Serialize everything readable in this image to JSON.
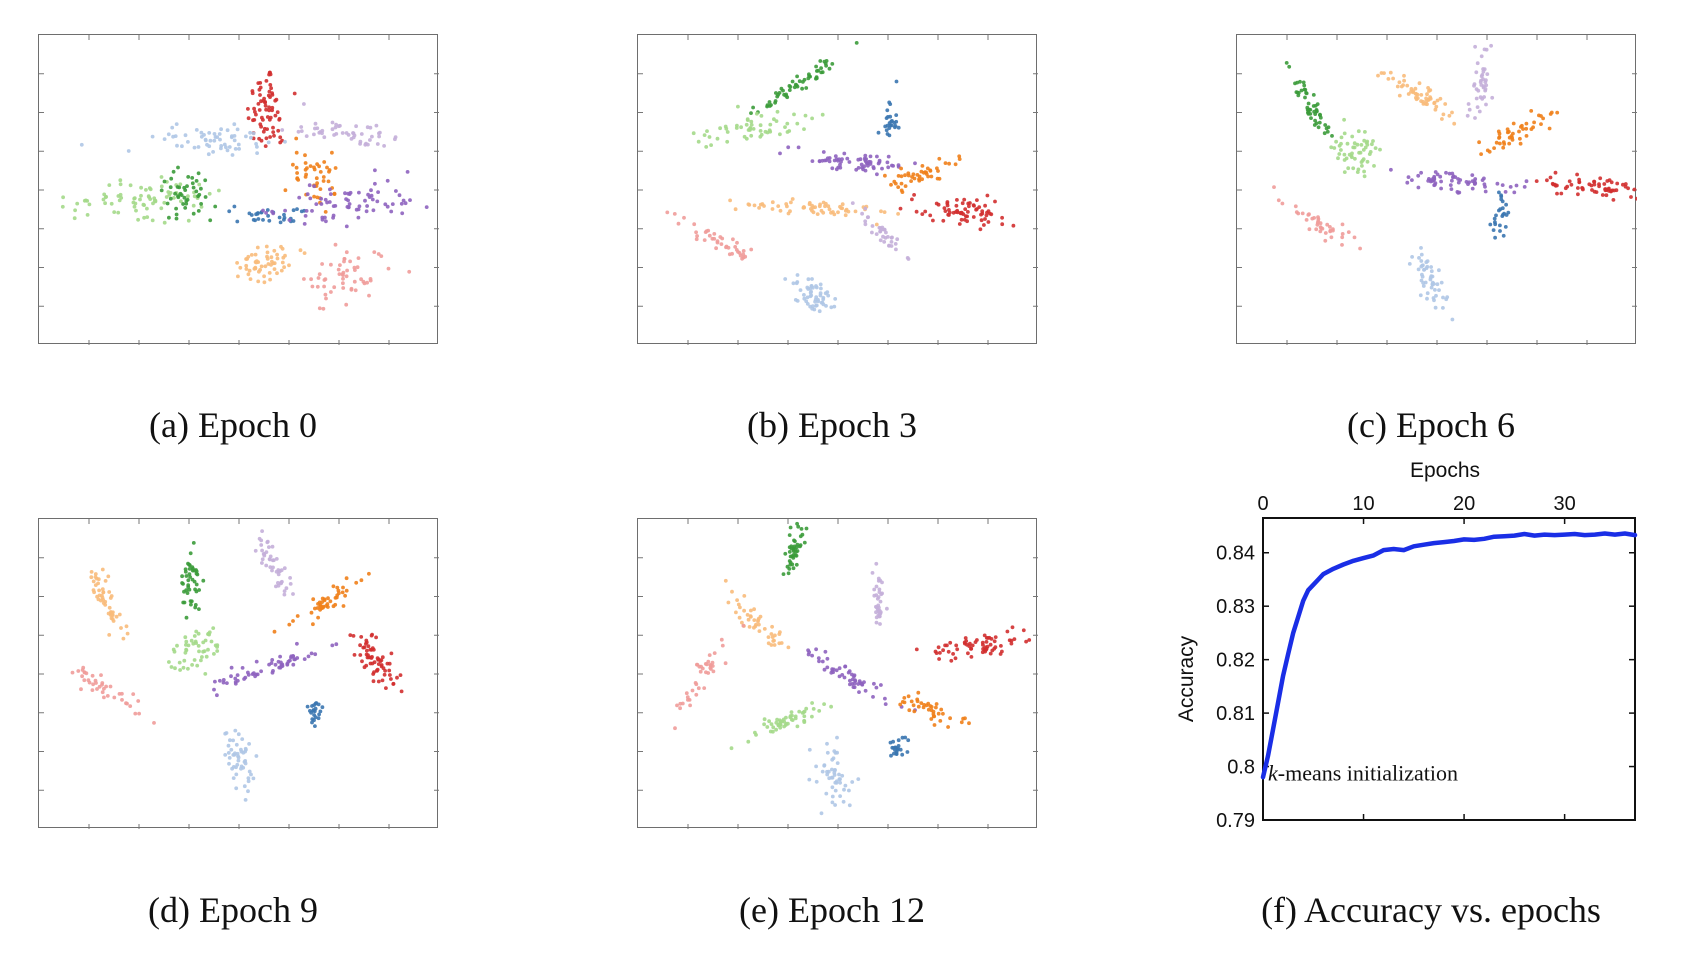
{
  "palette": {
    "blue": "#3a76b0",
    "lightblue": "#afc6e6",
    "orange": "#f07f19",
    "lightorange": "#f8bb7b",
    "green": "#3b9b3a",
    "lightgreen": "#a4d98a",
    "red": "#d12f2f",
    "pink": "#f09c9a",
    "purple": "#8e63bf",
    "lavender": "#c4afd9"
  },
  "captions": {
    "a": "(a) Epoch 0",
    "b": "(b) Epoch 3",
    "c": "(c) Epoch 6",
    "d": "(d) Epoch 9",
    "e": "(e) Epoch 12",
    "f": "(f) Accuracy vs. epochs"
  },
  "chart_data": [
    {
      "type": "scatter",
      "panel": "a",
      "clusters": [
        {
          "color": "red",
          "cx": 0.57,
          "cy": 0.24,
          "sx": 0.025,
          "sy": 0.07,
          "angle": 0,
          "n": 70
        },
        {
          "color": "lightblue",
          "cx": 0.43,
          "cy": 0.34,
          "sx": 0.08,
          "sy": 0.03,
          "angle": 0,
          "n": 60
        },
        {
          "color": "lavender",
          "cx": 0.78,
          "cy": 0.32,
          "sx": 0.08,
          "sy": 0.02,
          "angle": 5,
          "n": 50
        },
        {
          "color": "orange",
          "cx": 0.69,
          "cy": 0.45,
          "sx": 0.03,
          "sy": 0.05,
          "angle": 0,
          "n": 45
        },
        {
          "color": "lightgreen",
          "cx": 0.26,
          "cy": 0.53,
          "sx": 0.08,
          "sy": 0.035,
          "angle": -5,
          "n": 80
        },
        {
          "color": "green",
          "cx": 0.37,
          "cy": 0.52,
          "sx": 0.03,
          "sy": 0.04,
          "angle": 0,
          "n": 45
        },
        {
          "color": "blue",
          "cx": 0.57,
          "cy": 0.58,
          "sx": 0.05,
          "sy": 0.015,
          "angle": 0,
          "n": 30
        },
        {
          "color": "purple",
          "cx": 0.77,
          "cy": 0.54,
          "sx": 0.09,
          "sy": 0.03,
          "angle": -10,
          "n": 75
        },
        {
          "color": "lightorange",
          "cx": 0.57,
          "cy": 0.73,
          "sx": 0.05,
          "sy": 0.03,
          "angle": -15,
          "n": 55
        },
        {
          "color": "pink",
          "cx": 0.77,
          "cy": 0.78,
          "sx": 0.05,
          "sy": 0.04,
          "angle": -20,
          "n": 55
        }
      ]
    },
    {
      "type": "scatter",
      "panel": "b",
      "clusters": [
        {
          "color": "green",
          "cx": 0.4,
          "cy": 0.16,
          "sx": 0.06,
          "sy": 0.012,
          "angle": -35,
          "n": 55
        },
        {
          "color": "lightgreen",
          "cx": 0.29,
          "cy": 0.3,
          "sx": 0.06,
          "sy": 0.02,
          "angle": -10,
          "n": 55
        },
        {
          "color": "blue",
          "cx": 0.63,
          "cy": 0.27,
          "sx": 0.012,
          "sy": 0.04,
          "angle": 0,
          "n": 25
        },
        {
          "color": "purple",
          "cx": 0.54,
          "cy": 0.41,
          "sx": 0.08,
          "sy": 0.015,
          "angle": 5,
          "n": 65
        },
        {
          "color": "orange",
          "cx": 0.7,
          "cy": 0.45,
          "sx": 0.05,
          "sy": 0.015,
          "angle": -20,
          "n": 45
        },
        {
          "color": "red",
          "cx": 0.81,
          "cy": 0.57,
          "sx": 0.06,
          "sy": 0.025,
          "angle": 10,
          "n": 70
        },
        {
          "color": "lightorange",
          "cx": 0.45,
          "cy": 0.56,
          "sx": 0.09,
          "sy": 0.012,
          "angle": 3,
          "n": 60
        },
        {
          "color": "lavender",
          "cx": 0.61,
          "cy": 0.64,
          "sx": 0.04,
          "sy": 0.012,
          "angle": 45,
          "n": 35
        },
        {
          "color": "pink",
          "cx": 0.21,
          "cy": 0.67,
          "sx": 0.05,
          "sy": 0.015,
          "angle": 30,
          "n": 40
        },
        {
          "color": "lightblue",
          "cx": 0.44,
          "cy": 0.84,
          "sx": 0.04,
          "sy": 0.025,
          "angle": 45,
          "n": 55
        }
      ]
    },
    {
      "type": "scatter",
      "panel": "c",
      "clusters": [
        {
          "color": "green",
          "cx": 0.19,
          "cy": 0.24,
          "sx": 0.05,
          "sy": 0.012,
          "angle": 60,
          "n": 50
        },
        {
          "color": "lightgreen",
          "cx": 0.3,
          "cy": 0.39,
          "sx": 0.03,
          "sy": 0.04,
          "angle": 20,
          "n": 55
        },
        {
          "color": "lightorange",
          "cx": 0.45,
          "cy": 0.19,
          "sx": 0.06,
          "sy": 0.015,
          "angle": 30,
          "n": 55
        },
        {
          "color": "lavender",
          "cx": 0.61,
          "cy": 0.17,
          "sx": 0.01,
          "sy": 0.06,
          "angle": 10,
          "n": 40
        },
        {
          "color": "orange",
          "cx": 0.71,
          "cy": 0.31,
          "sx": 0.06,
          "sy": 0.015,
          "angle": -30,
          "n": 45
        },
        {
          "color": "purple",
          "cx": 0.54,
          "cy": 0.47,
          "sx": 0.08,
          "sy": 0.015,
          "angle": 5,
          "n": 65
        },
        {
          "color": "blue",
          "cx": 0.66,
          "cy": 0.59,
          "sx": 0.012,
          "sy": 0.035,
          "angle": 0,
          "n": 25
        },
        {
          "color": "red",
          "cx": 0.89,
          "cy": 0.49,
          "sx": 0.07,
          "sy": 0.02,
          "angle": 5,
          "n": 65
        },
        {
          "color": "pink",
          "cx": 0.21,
          "cy": 0.61,
          "sx": 0.05,
          "sy": 0.015,
          "angle": 30,
          "n": 40
        },
        {
          "color": "lightblue",
          "cx": 0.48,
          "cy": 0.79,
          "sx": 0.04,
          "sy": 0.02,
          "angle": 60,
          "n": 50
        }
      ]
    },
    {
      "type": "scatter",
      "panel": "d",
      "clusters": [
        {
          "color": "lightorange",
          "cx": 0.17,
          "cy": 0.27,
          "sx": 0.05,
          "sy": 0.015,
          "angle": 65,
          "n": 50
        },
        {
          "color": "green",
          "cx": 0.38,
          "cy": 0.2,
          "sx": 0.012,
          "sy": 0.05,
          "angle": 0,
          "n": 45
        },
        {
          "color": "lavender",
          "cx": 0.58,
          "cy": 0.14,
          "sx": 0.045,
          "sy": 0.015,
          "angle": 60,
          "n": 45
        },
        {
          "color": "orange",
          "cx": 0.72,
          "cy": 0.27,
          "sx": 0.05,
          "sy": 0.015,
          "angle": -30,
          "n": 45
        },
        {
          "color": "lightgreen",
          "cx": 0.39,
          "cy": 0.42,
          "sx": 0.035,
          "sy": 0.03,
          "angle": -20,
          "n": 50
        },
        {
          "color": "red",
          "cx": 0.84,
          "cy": 0.46,
          "sx": 0.045,
          "sy": 0.025,
          "angle": 55,
          "n": 65
        },
        {
          "color": "purple",
          "cx": 0.57,
          "cy": 0.48,
          "sx": 0.07,
          "sy": 0.015,
          "angle": -20,
          "n": 60
        },
        {
          "color": "pink",
          "cx": 0.17,
          "cy": 0.55,
          "sx": 0.05,
          "sy": 0.015,
          "angle": 30,
          "n": 40
        },
        {
          "color": "blue",
          "cx": 0.69,
          "cy": 0.63,
          "sx": 0.008,
          "sy": 0.03,
          "angle": 0,
          "n": 22
        },
        {
          "color": "lightblue",
          "cx": 0.5,
          "cy": 0.78,
          "sx": 0.04,
          "sy": 0.02,
          "angle": 70,
          "n": 50
        }
      ]
    },
    {
      "type": "scatter",
      "panel": "e",
      "clusters": [
        {
          "color": "green",
          "cx": 0.39,
          "cy": 0.1,
          "sx": 0.012,
          "sy": 0.045,
          "angle": 10,
          "n": 45
        },
        {
          "color": "lavender",
          "cx": 0.6,
          "cy": 0.26,
          "sx": 0.008,
          "sy": 0.05,
          "angle": 0,
          "n": 35
        },
        {
          "color": "lightorange",
          "cx": 0.3,
          "cy": 0.34,
          "sx": 0.05,
          "sy": 0.015,
          "angle": 45,
          "n": 45
        },
        {
          "color": "red",
          "cx": 0.86,
          "cy": 0.41,
          "sx": 0.07,
          "sy": 0.02,
          "angle": -5,
          "n": 65
        },
        {
          "color": "purple",
          "cx": 0.53,
          "cy": 0.51,
          "sx": 0.07,
          "sy": 0.015,
          "angle": 30,
          "n": 55
        },
        {
          "color": "pink",
          "cx": 0.16,
          "cy": 0.51,
          "sx": 0.045,
          "sy": 0.015,
          "angle": -60,
          "n": 40
        },
        {
          "color": "orange",
          "cx": 0.72,
          "cy": 0.61,
          "sx": 0.05,
          "sy": 0.015,
          "angle": 20,
          "n": 40
        },
        {
          "color": "lightgreen",
          "cx": 0.37,
          "cy": 0.65,
          "sx": 0.07,
          "sy": 0.015,
          "angle": -20,
          "n": 55
        },
        {
          "color": "blue",
          "cx": 0.65,
          "cy": 0.74,
          "sx": 0.01,
          "sy": 0.02,
          "angle": 0,
          "n": 22
        },
        {
          "color": "lightblue",
          "cx": 0.49,
          "cy": 0.83,
          "sx": 0.02,
          "sy": 0.05,
          "angle": 0,
          "n": 50
        }
      ]
    },
    {
      "type": "line",
      "panel": "f",
      "xlabel": "Epochs",
      "ylabel": "Accuracy",
      "xlim": [
        0,
        37
      ],
      "ylim": [
        0.79,
        0.8465
      ],
      "xticks": [
        0,
        10,
        20,
        30
      ],
      "yticks": [
        0.79,
        0.8,
        0.81,
        0.82,
        0.83,
        0.84
      ],
      "annotation": "k-means initialization",
      "series": [
        {
          "color": "#1a2ee6",
          "x": [
            0,
            0.5,
            1,
            1.5,
            2,
            2.5,
            3,
            3.5,
            4,
            4.5,
            5,
            5.5,
            6,
            7,
            8,
            9,
            10,
            11,
            12,
            13,
            14,
            15,
            16,
            17,
            18,
            19,
            20,
            21,
            22,
            23,
            24,
            25,
            26,
            27,
            28,
            29,
            30,
            31,
            32,
            33,
            34,
            35,
            36,
            37
          ],
          "y": [
            0.798,
            0.802,
            0.807,
            0.812,
            0.817,
            0.821,
            0.825,
            0.828,
            0.831,
            0.833,
            0.834,
            0.835,
            0.836,
            0.837,
            0.8378,
            0.8385,
            0.839,
            0.8395,
            0.8405,
            0.8407,
            0.8405,
            0.8412,
            0.8415,
            0.8418,
            0.842,
            0.8422,
            0.8425,
            0.8424,
            0.8426,
            0.843,
            0.8431,
            0.8432,
            0.8435,
            0.8432,
            0.8434,
            0.8433,
            0.8434,
            0.8435,
            0.8433,
            0.8434,
            0.8436,
            0.8434,
            0.8436,
            0.8433
          ]
        }
      ]
    }
  ]
}
